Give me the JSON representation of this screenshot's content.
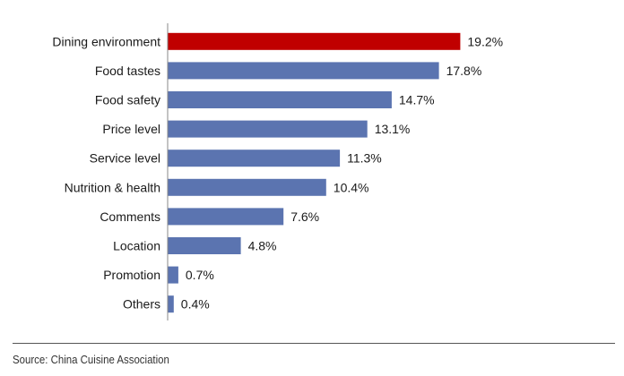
{
  "chart_data": {
    "type": "bar",
    "orientation": "horizontal",
    "categories": [
      "Dining environment",
      "Food tastes",
      "Food safety",
      "Price level",
      "Service level",
      "Nutrition & health",
      "Comments",
      "Location",
      "Promotion",
      "Others"
    ],
    "values": [
      19.2,
      17.8,
      14.7,
      13.1,
      11.3,
      10.4,
      7.6,
      4.8,
      0.7,
      0.4
    ],
    "value_labels": [
      "19.2%",
      "17.8%",
      "14.7%",
      "13.1%",
      "11.3%",
      "10.4%",
      "7.6%",
      "4.8%",
      "0.7%",
      "0.4%"
    ],
    "highlight_index": 0,
    "colors": {
      "highlight": "#c00000",
      "bar": "#5b74b0",
      "axis": "#888888"
    },
    "xlim": [
      0,
      20
    ],
    "grid": false,
    "legend": "none",
    "title": "",
    "xlabel": "",
    "ylabel": ""
  },
  "source": "Source: China Cuisine Association"
}
